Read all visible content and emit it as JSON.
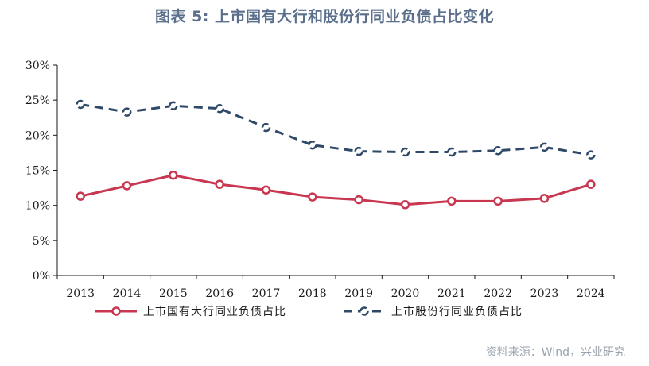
{
  "title": "图表 5:  上市国有大行和股份行同业负债占比变化",
  "source": "资料来源：Wind，兴业研究",
  "colors": {
    "series_a": "#c8374f",
    "series_b": "#2f4a68",
    "title": "#5b6f8c",
    "axis": "#1a1a1a"
  },
  "chart_data": {
    "type": "line",
    "title": "图表 5:  上市国有大行和股份行同业负债占比变化",
    "xlabel": "",
    "ylabel": "",
    "x": [
      "2013",
      "2014",
      "2015",
      "2016",
      "2017",
      "2018",
      "2019",
      "2020",
      "2021",
      "2022",
      "2023",
      "2024"
    ],
    "ylim": [
      0,
      30
    ],
    "yticks": [
      0,
      5,
      10,
      15,
      20,
      25,
      30
    ],
    "ytick_labels": [
      "0%",
      "5%",
      "10%",
      "15%",
      "20%",
      "25%",
      "30%"
    ],
    "grid": false,
    "legend_position": "bottom",
    "series": [
      {
        "name": "上市国有大行同业负债占比",
        "style": "solid",
        "marker": "circle",
        "values": [
          11.3,
          12.8,
          14.3,
          13.0,
          12.2,
          11.2,
          10.8,
          10.1,
          10.6,
          10.6,
          11.0,
          13.0
        ]
      },
      {
        "name": "上市股份行同业负债占比",
        "style": "dashed",
        "marker": "circle",
        "values": [
          24.4,
          23.3,
          24.2,
          23.8,
          21.1,
          18.6,
          17.7,
          17.6,
          17.6,
          17.8,
          18.3,
          17.2
        ]
      }
    ]
  }
}
